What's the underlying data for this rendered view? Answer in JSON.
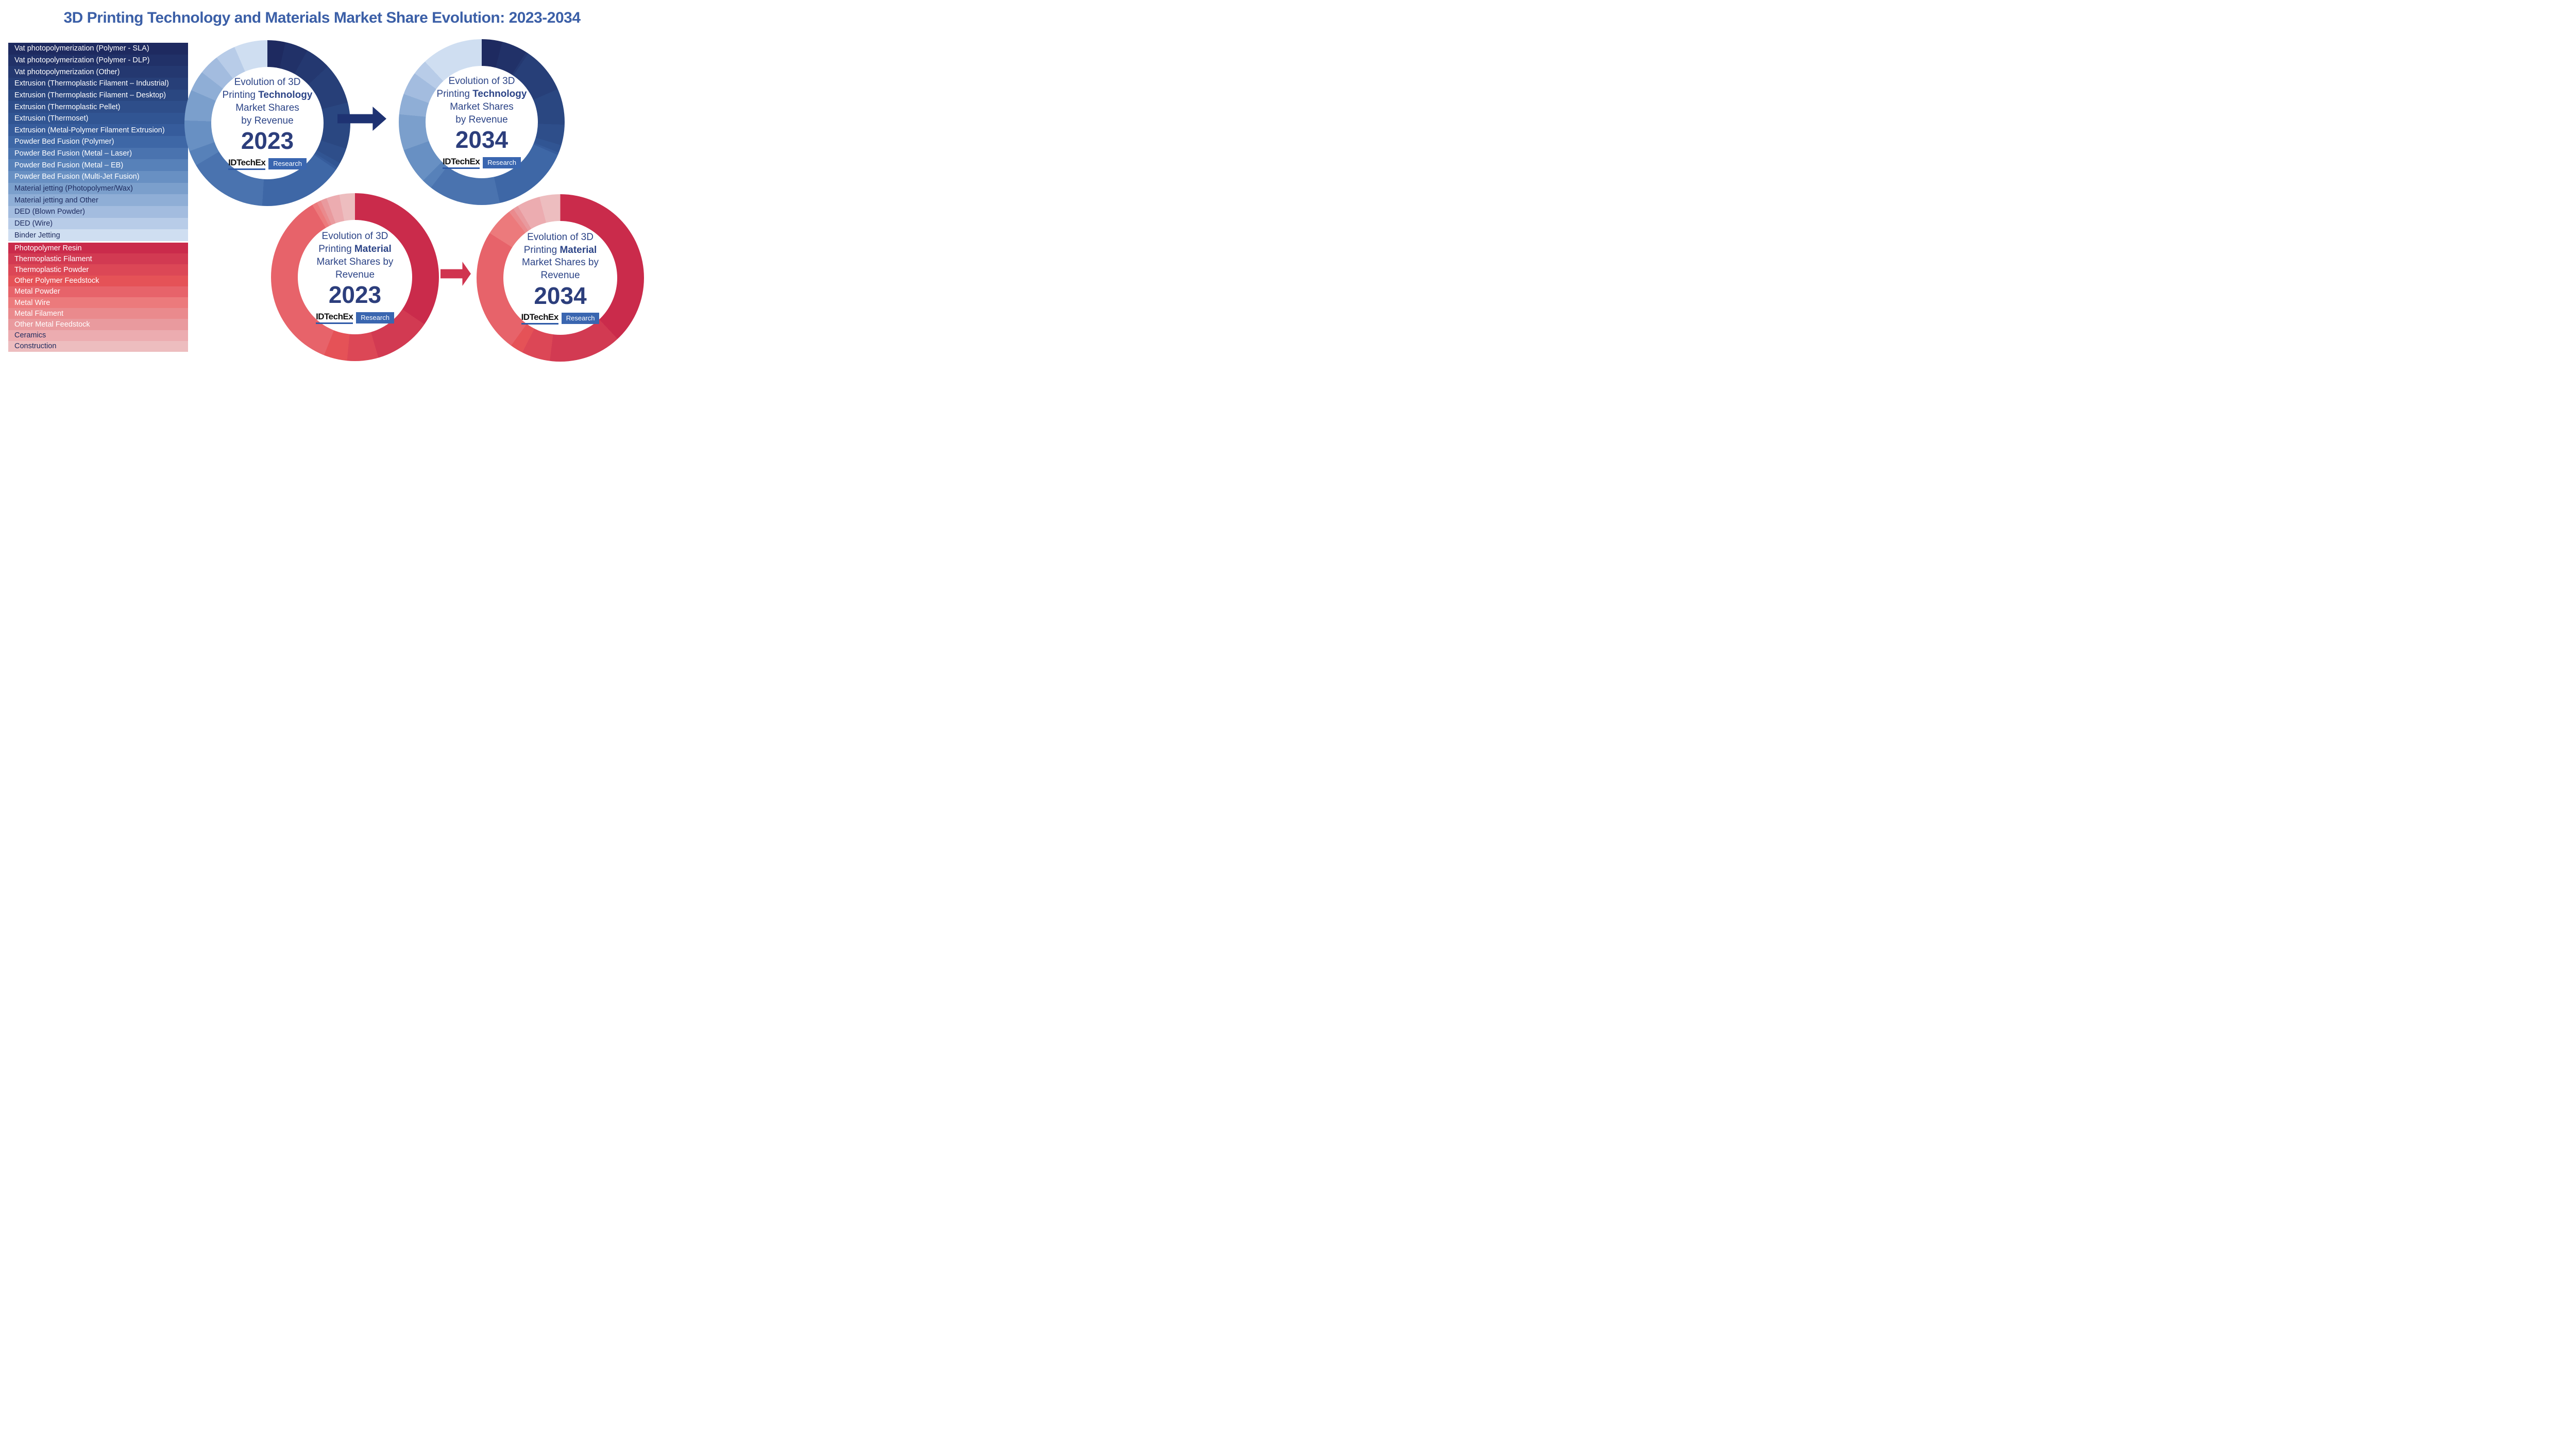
{
  "title": "3D Printing Technology and Materials Market Share Evolution: 2023-2034",
  "brand": {
    "logo": "IDTechEx",
    "badge": "Research"
  },
  "colors": {
    "title-color": "#3b5fa7",
    "center-text": "#2c4487",
    "year-text": "#2c3e7c",
    "navy-arrow": "#1e3272",
    "red-arrow": "#d0344f",
    "logo-underline": "#2e5aa8",
    "badge-bg": "#3a66b0",
    "legend-light-text": "#ffffff",
    "legend-dark-text": "#1d2a5e"
  },
  "technology_legend": {
    "items": [
      "Vat photopolymerization (Polymer - SLA)",
      "Vat photopolymerization (Polymer - DLP)",
      "Vat photopolymerization (Other)",
      "Extrusion (Thermoplastic Filament – Industrial)",
      "Extrusion (Thermoplastic Filament – Desktop)",
      "Extrusion (Thermoplastic Pellet)",
      "Extrusion (Thermoset)",
      "Extrusion (Metal-Polymer Filament Extrusion)",
      "Powder Bed Fusion (Polymer)",
      "Powder Bed Fusion  (Metal – Laser)",
      "Powder Bed Fusion  (Metal – EB)",
      "Powder Bed Fusion  (Multi-Jet Fusion)",
      "Material jetting (Photopolymer/Wax)",
      "Material jetting and Other",
      "DED (Blown Powder)",
      "DED (Wire)",
      "Binder Jetting"
    ],
    "colors": [
      "#1e2a60",
      "#213168",
      "#243870",
      "#273f78",
      "#2a4781",
      "#2e4e8a",
      "#315593",
      "#365c9c",
      "#3e67a6",
      "#4a73af",
      "#5781b9",
      "#6890c3",
      "#7b9fcc",
      "#8faed6",
      "#a3bcdf",
      "#b8cce8",
      "#cfdef1"
    ],
    "dark_text_from": 12
  },
  "materials_legend": {
    "items": [
      "Photopolymer Resin",
      "Thermoplastic Filament",
      "Thermoplastic Powder",
      "Other Polymer Feedstock",
      "Metal Powder",
      "Metal Wire",
      "Metal Filament",
      "Other Metal Feedstock",
      "Ceramics",
      "Construction"
    ],
    "colors": [
      "#ca2b4b",
      "#d23a52",
      "#dc4756",
      "#e55257",
      "#e7636a",
      "#ec7a7c",
      "#ea8a8d",
      "#e99a9e",
      "#ecacb0",
      "#edbdbf"
    ],
    "dark_text_from": 8
  },
  "chart_data": [
    {
      "type": "pie",
      "subtype": "donut",
      "palette": "technology",
      "year": "2023",
      "center_label": {
        "line1": "Evolution of 3D",
        "line2_prefix": "Printing ",
        "line2_bold": "Technology",
        "line3": "Market Shares",
        "line4": "by Revenue"
      },
      "legend_position": "left",
      "unit": "% of revenue (estimated from arc angles)",
      "categories": [
        "Vat photopolymerization (Polymer - SLA)",
        "Vat photopolymerization (Polymer - DLP)",
        "Vat photopolymerization (Other)",
        "Extrusion (Thermoplastic Filament – Industrial)",
        "Extrusion (Thermoplastic Filament – Desktop)",
        "Extrusion (Thermoplastic Pellet)",
        "Extrusion (Thermoset)",
        "Extrusion (Metal-Polymer Filament Extrusion)",
        "Powder Bed Fusion (Polymer)",
        "Powder Bed Fusion (Metal – Laser)",
        "Powder Bed Fusion (Metal – EB)",
        "Powder Bed Fusion (Multi-Jet Fusion)",
        "Material jetting (Photopolymer/Wax)",
        "Material jetting and Other",
        "DED (Blown Powder)",
        "DED (Wire)",
        "Binder Jetting"
      ],
      "values": [
        3.5,
        4.5,
        5,
        8,
        9,
        3,
        1,
        0.5,
        16.5,
        15.5,
        3,
        6,
        6,
        4,
        4,
        4,
        6.5
      ]
    },
    {
      "type": "pie",
      "subtype": "donut",
      "palette": "technology",
      "year": "2034",
      "center_label": {
        "line1": "Evolution of 3D",
        "line2_prefix": "Printing ",
        "line2_bold": "Technology",
        "line3": "Market Shares",
        "line4": "by Revenue"
      },
      "legend_position": "left",
      "unit": "% of revenue (estimated from arc angles)",
      "categories": [
        "Vat photopolymerization (Polymer - SLA)",
        "Vat photopolymerization (Polymer - DLP)",
        "Vat photopolymerization (Other)",
        "Extrusion (Thermoplastic Filament – Industrial)",
        "Extrusion (Thermoplastic Filament – Desktop)",
        "Extrusion (Thermoplastic Pellet)",
        "Extrusion (Thermoset)",
        "Extrusion (Metal-Polymer Filament Extrusion)",
        "Powder Bed Fusion (Polymer)",
        "Powder Bed Fusion (Metal – Laser)",
        "Powder Bed Fusion (Metal – EB)",
        "Powder Bed Fusion (Multi-Jet Fusion)",
        "Material jetting (Photopolymer/Wax)",
        "Material jetting and Other",
        "DED (Blown Powder)",
        "DED (Wire)",
        "Binder Jetting"
      ],
      "values": [
        4,
        5,
        0.5,
        9,
        7,
        4,
        1.5,
        0.5,
        15,
        14,
        2,
        7,
        7,
        4,
        4.5,
        3,
        12
      ]
    },
    {
      "type": "pie",
      "subtype": "donut",
      "palette": "materials",
      "year": "2023",
      "center_label": {
        "line1": "Evolution of 3D",
        "line2_prefix": "Printing ",
        "line2_bold": "Material",
        "line3": "Market Shares by",
        "line4": "Revenue"
      },
      "legend_position": "left",
      "unit": "% of revenue (estimated from arc angles)",
      "categories": [
        "Photopolymer Resin",
        "Thermoplastic Filament",
        "Thermoplastic Powder",
        "Other Polymer Feedstock",
        "Metal Powder",
        "Metal Wire",
        "Metal Filament",
        "Other Metal Feedstock",
        "Ceramics",
        "Construction"
      ],
      "values": [
        34.5,
        11,
        6,
        4.5,
        35.5,
        1,
        0.8,
        1.2,
        2.5,
        3
      ]
    },
    {
      "type": "pie",
      "subtype": "donut",
      "palette": "materials",
      "year": "2034",
      "center_label": {
        "line1": "Evolution of 3D",
        "line2_prefix": "Printing ",
        "line2_bold": "Material",
        "line3": "Market Shares by",
        "line4": "Revenue"
      },
      "legend_position": "left",
      "unit": "% of revenue (estimated from arc angles)",
      "categories": [
        "Photopolymer Resin",
        "Thermoplastic Filament",
        "Thermoplastic Powder",
        "Other Polymer Feedstock",
        "Metal Powder",
        "Metal Wire",
        "Metal Filament",
        "Other Metal Feedstock",
        "Ceramics",
        "Construction"
      ],
      "values": [
        38,
        14,
        5.5,
        2.5,
        24,
        5.5,
        1,
        1,
        4.5,
        4
      ]
    }
  ]
}
